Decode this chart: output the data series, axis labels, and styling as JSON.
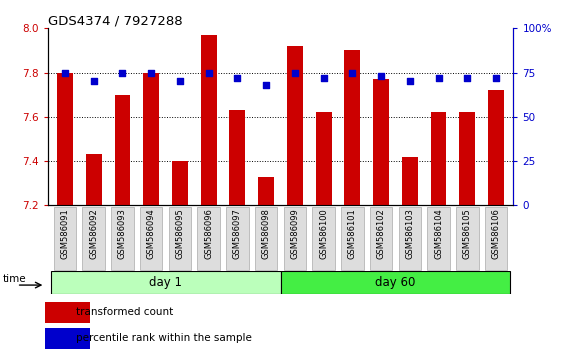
{
  "title": "GDS4374 / 7927288",
  "samples": [
    "GSM586091",
    "GSM586092",
    "GSM586093",
    "GSM586094",
    "GSM586095",
    "GSM586096",
    "GSM586097",
    "GSM586098",
    "GSM586099",
    "GSM586100",
    "GSM586101",
    "GSM586102",
    "GSM586103",
    "GSM586104",
    "GSM586105",
    "GSM586106"
  ],
  "bar_values": [
    7.8,
    7.43,
    7.7,
    7.8,
    7.4,
    7.97,
    7.63,
    7.33,
    7.92,
    7.62,
    7.9,
    7.77,
    7.42,
    7.62,
    7.62,
    7.72
  ],
  "dot_values": [
    75,
    70,
    75,
    75,
    70,
    75,
    72,
    68,
    75,
    72,
    75,
    73,
    70,
    72,
    72,
    72
  ],
  "bar_color": "#cc0000",
  "dot_color": "#0000cc",
  "ylim_left": [
    7.2,
    8.0
  ],
  "ylim_right": [
    0,
    100
  ],
  "yticks_left": [
    7.2,
    7.4,
    7.6,
    7.8,
    8.0
  ],
  "yticks_right": [
    0,
    25,
    50,
    75,
    100
  ],
  "yticklabels_right": [
    "0",
    "25",
    "50",
    "75",
    "100%"
  ],
  "group1_label": "day 1",
  "group2_label": "day 60",
  "group1_count": 8,
  "group2_count": 8,
  "group1_color": "#bbffbb",
  "group2_color": "#44ee44",
  "time_label": "time",
  "legend1_label": "transformed count",
  "legend2_label": "percentile rank within the sample",
  "bar_bottom": 7.2
}
